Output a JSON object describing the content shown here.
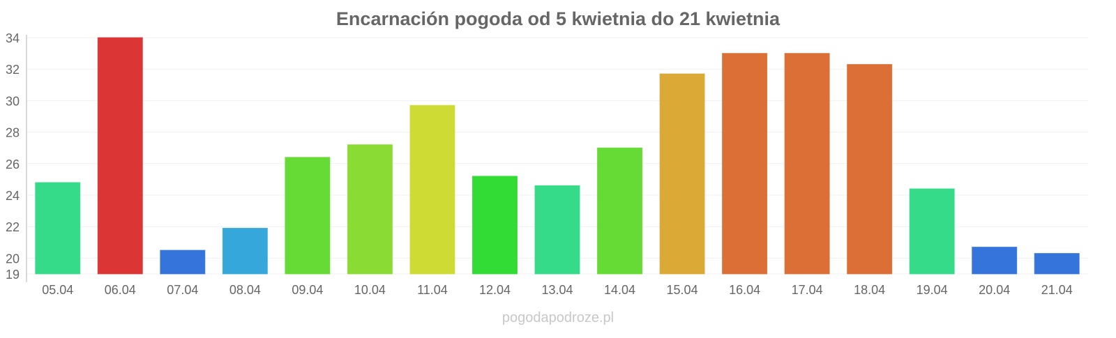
{
  "chart_data": {
    "type": "bar",
    "title": "Encarnación pogoda od 5 kwietnia do 21 kwietnia",
    "xlabel": "",
    "ylabel": "",
    "ylim": [
      19,
      34
    ],
    "yticks": [
      19,
      20,
      22,
      24,
      26,
      28,
      30,
      32,
      34
    ],
    "grid": true,
    "categories": [
      "05.04",
      "06.04",
      "07.04",
      "08.04",
      "09.04",
      "10.04",
      "11.04",
      "12.04",
      "13.04",
      "14.04",
      "15.04",
      "16.04",
      "17.04",
      "18.04",
      "19.04",
      "20.04",
      "21.04"
    ],
    "values": [
      24.8,
      34.0,
      20.5,
      21.9,
      26.4,
      27.2,
      29.7,
      25.2,
      24.6,
      27.0,
      31.7,
      33.0,
      33.0,
      32.3,
      24.4,
      20.7,
      20.3
    ],
    "colors": [
      "#36db8a",
      "#db3535",
      "#3575db",
      "#35a7db",
      "#66db35",
      "#8bdb35",
      "#cfdb35",
      "#33db35",
      "#36db8a",
      "#66db35",
      "#dba935",
      "#db6f35",
      "#db6f35",
      "#db6f35",
      "#36db8a",
      "#3575db",
      "#3575db"
    ]
  },
  "watermark": "pogodapodroze.pl"
}
